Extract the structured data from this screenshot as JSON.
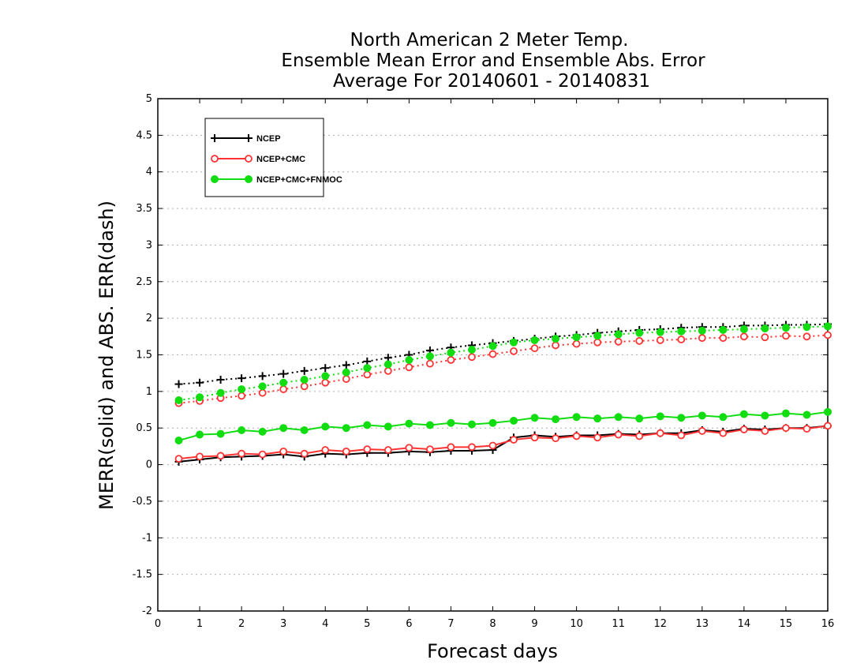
{
  "chart_data": {
    "type": "line",
    "title": [
      "North American 2 Meter Temp.",
      "Ensemble Mean Error and Ensemble Abs. Error",
      "Average For 20140601 - 20140831"
    ],
    "xlabel": "Forecast days",
    "ylabel": "MERR(solid) and ABS. ERR(dash)",
    "xlim": [
      0,
      16
    ],
    "ylim": [
      -2,
      5
    ],
    "xticks": [
      0,
      1,
      2,
      3,
      4,
      5,
      6,
      7,
      8,
      9,
      10,
      11,
      12,
      13,
      14,
      15,
      16
    ],
    "yticks": [
      -2,
      -1.5,
      -1,
      -0.5,
      0,
      0.5,
      1,
      1.5,
      2,
      2.5,
      3,
      3.5,
      4,
      4.5,
      5
    ],
    "x": [
      0.5,
      1,
      1.5,
      2,
      2.5,
      3,
      3.5,
      4,
      4.5,
      5,
      5.5,
      6,
      6.5,
      7,
      7.5,
      8,
      8.5,
      9,
      9.5,
      10,
      10.5,
      11,
      11.5,
      12,
      12.5,
      13,
      13.5,
      14,
      14.5,
      15,
      15.5,
      16
    ],
    "grid": true,
    "legend_position": "top-left",
    "series": [
      {
        "name": "NCEP",
        "color": "#000000",
        "marker": "plus",
        "merr": [
          0.04,
          0.07,
          0.1,
          0.11,
          0.12,
          0.14,
          0.11,
          0.15,
          0.14,
          0.16,
          0.16,
          0.18,
          0.17,
          0.19,
          0.19,
          0.2,
          0.37,
          0.4,
          0.38,
          0.4,
          0.4,
          0.42,
          0.41,
          0.43,
          0.43,
          0.47,
          0.45,
          0.49,
          0.48,
          0.5,
          0.5,
          0.53
        ],
        "abs_err": [
          1.1,
          1.12,
          1.16,
          1.18,
          1.21,
          1.24,
          1.28,
          1.32,
          1.36,
          1.41,
          1.46,
          1.5,
          1.56,
          1.6,
          1.63,
          1.66,
          1.69,
          1.72,
          1.75,
          1.77,
          1.8,
          1.82,
          1.84,
          1.85,
          1.87,
          1.88,
          1.88,
          1.9,
          1.9,
          1.91,
          1.91,
          1.92
        ]
      },
      {
        "name": "NCEP+CMC",
        "color": "#ff3333",
        "marker": "open-circle",
        "merr": [
          0.08,
          0.11,
          0.12,
          0.15,
          0.14,
          0.18,
          0.15,
          0.2,
          0.18,
          0.21,
          0.2,
          0.23,
          0.21,
          0.24,
          0.24,
          0.26,
          0.34,
          0.37,
          0.36,
          0.39,
          0.37,
          0.41,
          0.39,
          0.43,
          0.4,
          0.46,
          0.43,
          0.48,
          0.46,
          0.5,
          0.49,
          0.53
        ],
        "abs_err": [
          0.84,
          0.87,
          0.91,
          0.94,
          0.98,
          1.03,
          1.07,
          1.12,
          1.17,
          1.23,
          1.28,
          1.33,
          1.38,
          1.43,
          1.47,
          1.51,
          1.55,
          1.59,
          1.63,
          1.65,
          1.67,
          1.68,
          1.69,
          1.7,
          1.71,
          1.73,
          1.73,
          1.75,
          1.74,
          1.76,
          1.75,
          1.77
        ]
      },
      {
        "name": "NCEP+CMC+FNMOC",
        "color": "#11dd11",
        "marker": "filled-circle",
        "merr": [
          0.33,
          0.41,
          0.42,
          0.47,
          0.45,
          0.5,
          0.47,
          0.52,
          0.5,
          0.54,
          0.52,
          0.56,
          0.54,
          0.57,
          0.55,
          0.57,
          0.6,
          0.64,
          0.62,
          0.65,
          0.63,
          0.65,
          0.63,
          0.66,
          0.64,
          0.67,
          0.65,
          0.69,
          0.67,
          0.7,
          0.68,
          0.72
        ],
        "abs_err": [
          0.88,
          0.92,
          0.98,
          1.03,
          1.07,
          1.12,
          1.16,
          1.21,
          1.26,
          1.32,
          1.37,
          1.43,
          1.48,
          1.53,
          1.57,
          1.62,
          1.67,
          1.7,
          1.72,
          1.74,
          1.76,
          1.78,
          1.8,
          1.81,
          1.82,
          1.83,
          1.84,
          1.85,
          1.86,
          1.87,
          1.88,
          1.89
        ]
      }
    ]
  }
}
